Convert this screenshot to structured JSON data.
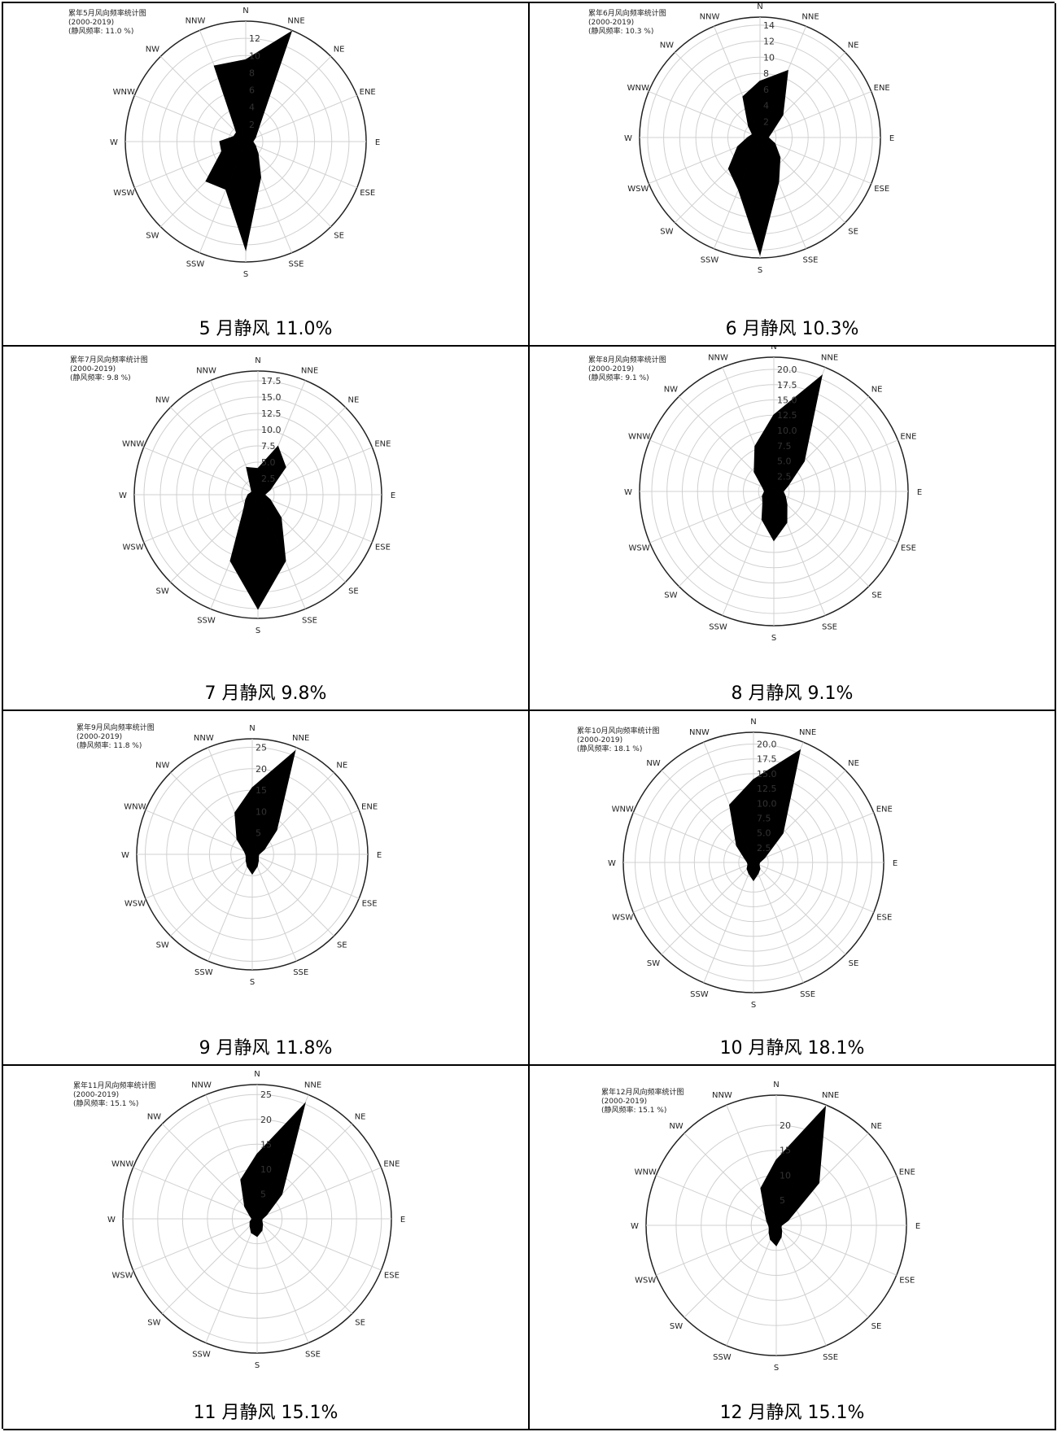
{
  "chart_data": [
    {
      "type": "radar",
      "header": [
        "累年5月风向频率统计图",
        "(2000-2019)",
        "(静风频率: 11.0 %)"
      ],
      "caption": "5 月静风 11.0%",
      "directions": [
        "N",
        "NNE",
        "NE",
        "ENE",
        "E",
        "ESE",
        "SE",
        "SSE",
        "S",
        "SSW",
        "SW",
        "WSW",
        "W",
        "WNW",
        "NW",
        "NNW"
      ],
      "radial_ticks": [
        "2",
        "4",
        "6",
        "8",
        "10",
        "12"
      ],
      "rmax": 14,
      "values": [
        9.5,
        13.8,
        2.0,
        1.2,
        0.8,
        1.2,
        2.0,
        4.5,
        12.5,
        6.0,
        6.5,
        3.0,
        3.0,
        1.5,
        1.5,
        9.5
      ]
    },
    {
      "type": "radar",
      "header": [
        "累年6月风向频率统计图",
        "(2000-2019)",
        "(静风频率: 10.3 %)"
      ],
      "caption": "6 月静风 10.3%",
      "directions": [
        "N",
        "NNE",
        "NE",
        "ENE",
        "E",
        "ESE",
        "SE",
        "SSE",
        "S",
        "SSW",
        "SW",
        "WSW",
        "W",
        "WNW",
        "NW",
        "NNW"
      ],
      "radial_ticks": [
        "2",
        "4",
        "6",
        "8",
        "10",
        "12",
        "14"
      ],
      "rmax": 15,
      "values": [
        7.0,
        9.0,
        4.0,
        1.5,
        1.0,
        2.0,
        3.5,
        6.0,
        14.5,
        7.0,
        5.5,
        3.0,
        1.5,
        1.0,
        2.0,
        5.5
      ]
    },
    {
      "type": "radar",
      "header": [
        "累年7月风向频率统计图",
        "(2000-2019)",
        "(静风频率: 9.8 %)"
      ],
      "caption": "7 月静风 9.8%",
      "directions": [
        "N",
        "NNE",
        "NE",
        "ENE",
        "E",
        "ESE",
        "SE",
        "SSE",
        "S",
        "SSW",
        "SW",
        "WSW",
        "W",
        "WNW",
        "NW",
        "NNW"
      ],
      "radial_ticks": [
        "2.5",
        "5.0",
        "7.5",
        "10.0",
        "12.5",
        "15.0",
        "17.5"
      ],
      "rmax": 19,
      "values": [
        4.0,
        8.0,
        6.0,
        2.0,
        1.0,
        2.0,
        5.0,
        11.0,
        17.5,
        11.0,
        3.0,
        2.0,
        1.5,
        1.0,
        1.5,
        4.5
      ]
    },
    {
      "type": "radar",
      "header": [
        "累年8月风向频率统计图",
        "(2000-2019)",
        "(静风频率: 9.1 %)"
      ],
      "caption": "8 月静风 9.1%",
      "directions": [
        "N",
        "NNE",
        "NE",
        "ENE",
        "E",
        "ESE",
        "SE",
        "SSE",
        "S",
        "SSW",
        "SW",
        "WSW",
        "W",
        "WNW",
        "NW",
        "NNW"
      ],
      "radial_ticks": [
        "2.5",
        "5.0",
        "7.5",
        "10.0",
        "12.5",
        "15.0",
        "17.5",
        "20.0"
      ],
      "rmax": 22,
      "values": [
        12.5,
        20.5,
        7.0,
        2.5,
        1.5,
        2.0,
        3.0,
        5.5,
        8.0,
        5.0,
        2.5,
        2.0,
        1.5,
        2.0,
        4.5,
        8.0
      ]
    },
    {
      "type": "radar",
      "header": [
        "累年9月风向频率统计图",
        "(2000-2019)",
        "(静风频率: 11.8 %)"
      ],
      "caption": "9 月静风 11.8%",
      "directions": [
        "N",
        "NNE",
        "NE",
        "ENE",
        "E",
        "ESE",
        "SE",
        "SSE",
        "S",
        "SSW",
        "SW",
        "WSW",
        "W",
        "WNW",
        "NW",
        "NNW"
      ],
      "radial_ticks": [
        "5",
        "10",
        "15",
        "20",
        "25"
      ],
      "rmax": 27,
      "values": [
        15.5,
        26.0,
        8.0,
        3.0,
        1.5,
        1.5,
        2.0,
        3.0,
        4.5,
        3.0,
        2.0,
        1.5,
        1.5,
        2.0,
        5.0,
        10.5
      ]
    },
    {
      "type": "radar",
      "header": [
        "累年10月风向频率统计图",
        "(2000-2019)",
        "(静风频率: 18.1 %)"
      ],
      "caption": "10 月静风 18.1%",
      "directions": [
        "N",
        "NNE",
        "NE",
        "ENE",
        "E",
        "ESE",
        "SE",
        "SSE",
        "S",
        "SSW",
        "SW",
        "WSW",
        "W",
        "WNW",
        "NW",
        "NNW"
      ],
      "radial_ticks": [
        "2.5",
        "5.0",
        "7.5",
        "10.0",
        "12.5",
        "15.0",
        "17.5",
        "20.0"
      ],
      "rmax": 22,
      "values": [
        14.0,
        20.5,
        7.0,
        2.0,
        1.0,
        1.0,
        1.5,
        2.0,
        3.0,
        2.0,
        1.5,
        1.0,
        1.0,
        1.5,
        4.0,
        10.5
      ]
    },
    {
      "type": "radar",
      "header": [
        "累年11月风向频率统计图",
        "(2000-2019)",
        "(静风频率: 15.1 %)"
      ],
      "caption": "11 月静风 15.1%",
      "directions": [
        "N",
        "NNE",
        "NE",
        "ENE",
        "E",
        "ESE",
        "SE",
        "SSE",
        "S",
        "SSW",
        "SW",
        "WSW",
        "W",
        "WNW",
        "NW",
        "NNW"
      ],
      "radial_ticks": [
        "5",
        "10",
        "15",
        "20",
        "25"
      ],
      "rmax": 27,
      "values": [
        13.0,
        25.0,
        7.0,
        2.0,
        1.0,
        1.0,
        1.5,
        2.5,
        3.5,
        3.0,
        2.0,
        1.5,
        1.0,
        1.5,
        3.5,
        8.5
      ]
    },
    {
      "type": "radar",
      "header": [
        "累年12月风向频率统计图",
        "(2000-2019)",
        "(静风频率: 15.1 %)"
      ],
      "caption": "12 月静风 15.1%",
      "directions": [
        "N",
        "NNE",
        "NE",
        "ENE",
        "E",
        "ESE",
        "SE",
        "SSE",
        "S",
        "SSW",
        "SW",
        "WSW",
        "W",
        "WNW",
        "NW",
        "NNW"
      ],
      "radial_ticks": [
        "5",
        "10",
        "15",
        "20"
      ],
      "rmax": 26,
      "values": [
        13.0,
        25.5,
        12.0,
        2.5,
        1.0,
        1.0,
        1.5,
        2.5,
        4.0,
        3.0,
        2.0,
        1.5,
        1.5,
        2.0,
        3.0,
        8.0
      ]
    }
  ]
}
